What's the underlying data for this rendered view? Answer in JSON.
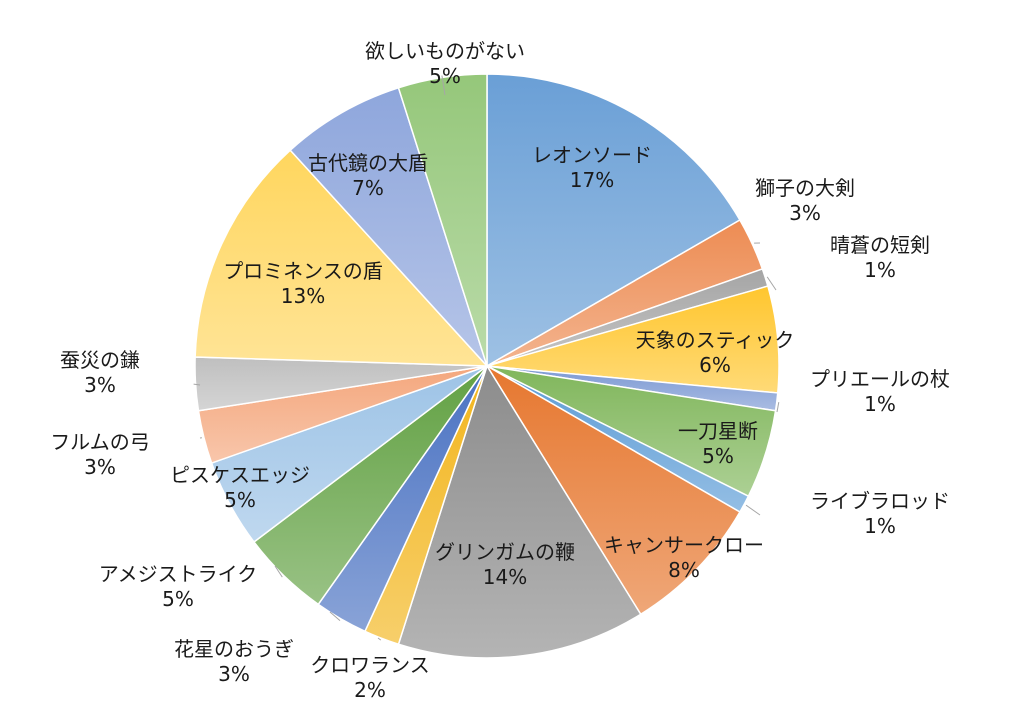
{
  "chart_data": {
    "type": "pie",
    "title": "",
    "slices": [
      {
        "label": "レオンソード",
        "value": 17,
        "pct_label": "17%",
        "color": "#6a9fd6"
      },
      {
        "label": "獅子の大剣",
        "value": 3,
        "pct_label": "3%",
        "color": "#ed8c53"
      },
      {
        "label": "晴蒼の短剣",
        "value": 1,
        "pct_label": "1%",
        "color": "#a5a5a5"
      },
      {
        "label": "天象のスティック",
        "value": 6,
        "pct_label": "6%",
        "color": "#ffc62e"
      },
      {
        "label": "プリエールの杖",
        "value": 1,
        "pct_label": "1%",
        "color": "#7b98d3"
      },
      {
        "label": "一刀星断",
        "value": 5,
        "pct_label": "5%",
        "color": "#80b65b"
      },
      {
        "label": "ライブラロッド",
        "value": 1,
        "pct_label": "1%",
        "color": "#5b9bd5"
      },
      {
        "label": "キャンサークロー",
        "value": 8,
        "pct_label": "8%",
        "color": "#e6772f"
      },
      {
        "label": "グリンガムの鞭",
        "value": 14,
        "pct_label": "14%",
        "color": "#8c8c8c"
      },
      {
        "label": "クロワランス",
        "value": 2,
        "pct_label": "2%",
        "color": "#f2b51c"
      },
      {
        "label": "花星のおうぎ",
        "value": 3,
        "pct_label": "3%",
        "color": "#4a72c2"
      },
      {
        "label": "アメジストライク",
        "value": 5,
        "pct_label": "5%",
        "color": "#62a143"
      },
      {
        "label": "ピスケスエッジ",
        "value": 5,
        "pct_label": "5%",
        "color": "#9dc3e6"
      },
      {
        "label": "フルムの弓",
        "value": 3,
        "pct_label": "3%",
        "color": "#f4a77d"
      },
      {
        "label": "蚕災の鎌",
        "value": 3,
        "pct_label": "3%",
        "color": "#bfbfbf"
      },
      {
        "label": "プロミネンスの盾",
        "value": 13,
        "pct_label": "13%",
        "color": "#ffd65e"
      },
      {
        "label": "古代鏡の大盾",
        "value": 7,
        "pct_label": "7%",
        "color": "#8ea6dc"
      },
      {
        "label": "欲しいものがない",
        "value": 5,
        "pct_label": "5%",
        "color": "#95c77a"
      }
    ]
  }
}
